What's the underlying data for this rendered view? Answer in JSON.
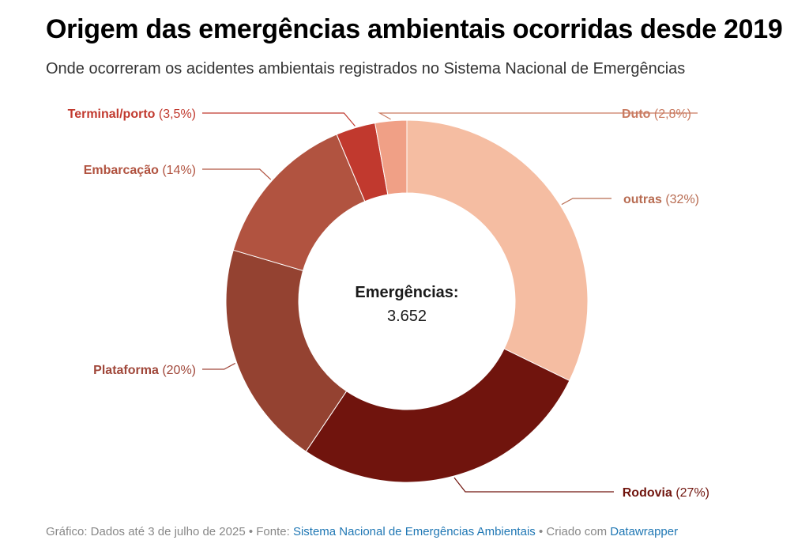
{
  "title": "Origem das emergências ambientais ocorridas desde 2019",
  "subtitle": "Onde ocorreram os acidentes ambientais registrados no Sistema Nacional de Emergências",
  "center": {
    "label": "Emergências:",
    "value": "3.652"
  },
  "chart_data": {
    "type": "pie",
    "donut": true,
    "total": 3652,
    "slices": [
      {
        "name": "outras",
        "value": 32,
        "label": "(32%)",
        "color": "#f5bda2",
        "label_color": "#b86c52"
      },
      {
        "name": "Rodovia",
        "value": 27,
        "label": "(27%)",
        "color": "#70140d",
        "label_color": "#70140d"
      },
      {
        "name": "Plataforma",
        "value": 20,
        "label": "(20%)",
        "color": "#944231",
        "label_color": "#a0473a"
      },
      {
        "name": "Embarcação",
        "value": 14,
        "label": "(14%)",
        "color": "#b15340",
        "label_color": "#b15340"
      },
      {
        "name": "Terminal/porto",
        "value": 3.5,
        "label": "(3,5%)",
        "color": "#c1392e",
        "label_color": "#c1392e"
      },
      {
        "name": "Duto",
        "value": 2.8,
        "label": "(2,8%)",
        "color": "#f0a086",
        "label_color": "#c97a60"
      }
    ]
  },
  "footer": {
    "prefix": "Gráfico: Dados até 3 de julho de 2025 • Fonte: ",
    "source_link": "Sistema Nacional de Emergências Ambientais",
    "middle": " • Criado com ",
    "tool_link": "Datawrapper"
  }
}
